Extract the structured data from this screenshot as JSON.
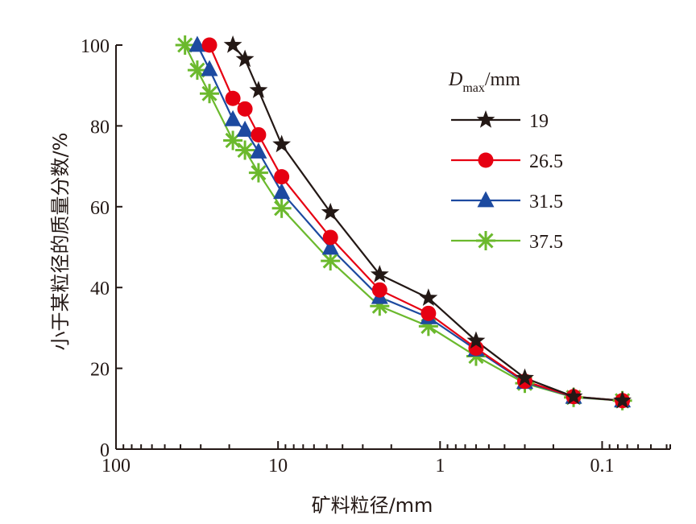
{
  "chart_data": {
    "type": "line",
    "title": "",
    "xlabel": "矿料粒径/mm",
    "ylabel": "小于某粒径的质量分数/%",
    "xscale": "log",
    "x_reversed": true,
    "xlim": [
      100,
      0.038
    ],
    "ylim": [
      0,
      100
    ],
    "grid": false,
    "x": [
      37.5,
      31.5,
      26.5,
      19,
      16,
      13.2,
      9.5,
      4.75,
      2.36,
      1.18,
      0.6,
      0.3,
      0.15,
      0.075
    ],
    "xticks": [
      {
        "value": 100,
        "label": "100"
      },
      {
        "value": 10,
        "label": "10"
      },
      {
        "value": 1,
        "label": "1"
      },
      {
        "value": 0.1,
        "label": "0.1"
      }
    ],
    "yticks": [
      {
        "value": 0,
        "label": "0"
      },
      {
        "value": 20,
        "label": "20"
      },
      {
        "value": 40,
        "label": "40"
      },
      {
        "value": 60,
        "label": "60"
      },
      {
        "value": 80,
        "label": "80"
      },
      {
        "value": 100,
        "label": "100"
      }
    ],
    "legend": {
      "title_main": "D",
      "title_sub": "max",
      "title_unit": "/mm",
      "placement": "top-right"
    },
    "series": [
      {
        "name": "19",
        "color": "#231815",
        "marker": "star",
        "x": [
          19,
          16,
          13.2,
          9.5,
          4.75,
          2.36,
          1.18,
          0.6,
          0.3,
          0.15,
          0.075
        ],
        "values": [
          100,
          96.5,
          88.8,
          75.4,
          58.6,
          43.2,
          37.4,
          26.8,
          17.6,
          13.0,
          12.0
        ]
      },
      {
        "name": "26.5",
        "color": "#e60012",
        "marker": "circle",
        "x": [
          26.5,
          19,
          16,
          13.2,
          9.5,
          4.75,
          2.36,
          1.18,
          0.6,
          0.3,
          0.15,
          0.075
        ],
        "values": [
          100,
          86.8,
          84.2,
          77.8,
          67.4,
          52.4,
          39.4,
          33.6,
          25.0,
          16.8,
          13.0,
          12.0
        ]
      },
      {
        "name": "31.5",
        "color": "#1d4aa0",
        "marker": "triangle",
        "x": [
          31.5,
          26.5,
          19,
          16,
          13.2,
          9.5,
          4.75,
          2.36,
          1.18,
          0.6,
          0.3,
          0.15,
          0.075
        ],
        "values": [
          100,
          94.0,
          81.6,
          79.0,
          73.6,
          63.6,
          49.8,
          37.6,
          32.6,
          24.6,
          16.6,
          12.9,
          12.0
        ]
      },
      {
        "name": "37.5",
        "color": "#6bb92d",
        "marker": "asterisk",
        "x": [
          37.5,
          31.5,
          26.5,
          19,
          16,
          13.2,
          9.5,
          4.75,
          2.36,
          1.18,
          0.6,
          0.3,
          0.15,
          0.075
        ],
        "values": [
          100,
          93.8,
          88.0,
          76.4,
          74.0,
          68.4,
          59.6,
          46.6,
          35.4,
          30.4,
          23.0,
          16.3,
          12.8,
          12.0
        ]
      }
    ]
  }
}
